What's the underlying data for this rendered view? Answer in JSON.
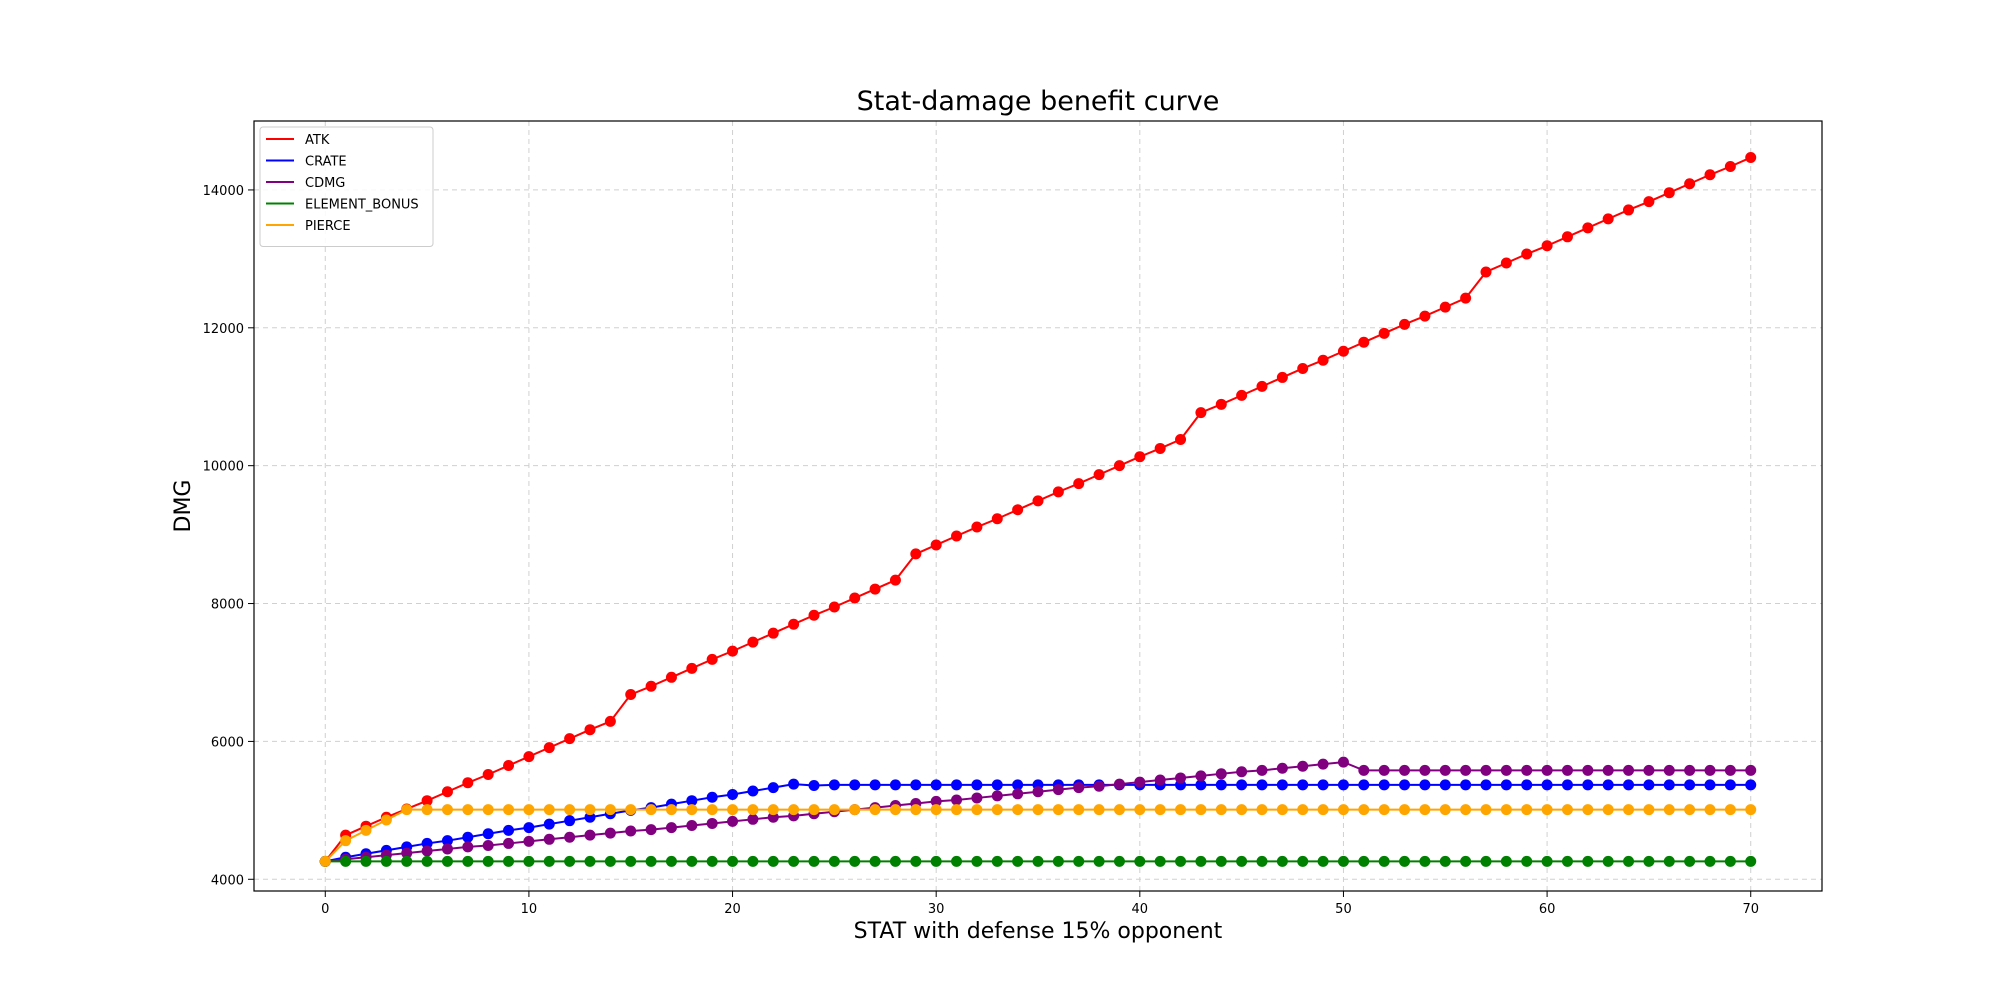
{
  "chart_data": {
    "type": "line",
    "title": "Stat-damage benefit curve",
    "xlabel": "STAT with defense 15% opponent",
    "ylabel": "DMG",
    "xlim": [
      -3.5,
      73.5
    ],
    "ylim": [
      3830,
      15000
    ],
    "x_ticks": [
      0,
      10,
      20,
      30,
      40,
      50,
      60,
      70
    ],
    "y_ticks": [
      4000,
      6000,
      8000,
      10000,
      12000,
      14000
    ],
    "grid": true,
    "legend_position": "top-left",
    "markers": "circle",
    "x": [
      0,
      1,
      2,
      3,
      4,
      5,
      6,
      7,
      8,
      9,
      10,
      11,
      12,
      13,
      14,
      15,
      16,
      17,
      18,
      19,
      20,
      21,
      22,
      23,
      24,
      25,
      26,
      27,
      28,
      29,
      30,
      31,
      32,
      33,
      34,
      35,
      36,
      37,
      38,
      39,
      40,
      41,
      42,
      43,
      44,
      45,
      46,
      47,
      48,
      49,
      50,
      51,
      52,
      53,
      54,
      55,
      56,
      57,
      58,
      59,
      60,
      61,
      62,
      63,
      64,
      65,
      66,
      67,
      68,
      69,
      70
    ],
    "series": [
      {
        "name": "ATK",
        "color": "#ff0000",
        "values": [
          4260,
          4640,
          4770,
          4900,
          5020,
          5140,
          5270,
          5400,
          5520,
          5650,
          5780,
          5910,
          6040,
          6170,
          6290,
          6680,
          6800,
          6930,
          7060,
          7190,
          7310,
          7440,
          7570,
          7700,
          7830,
          7950,
          8080,
          8210,
          8340,
          8720,
          8850,
          8980,
          9110,
          9230,
          9360,
          9490,
          9620,
          9740,
          9870,
          10000,
          10130,
          10250,
          10380,
          10770,
          10890,
          11020,
          11150,
          11280,
          11410,
          11530,
          11660,
          11790,
          11920,
          12050,
          12170,
          12300,
          12430,
          12810,
          12940,
          13070,
          13190,
          13320,
          13450,
          13580,
          13710,
          13830,
          13960,
          14090,
          14220,
          14340,
          14470
        ]
      },
      {
        "name": "CRATE",
        "color": "#0000ff",
        "values": [
          4260,
          4320,
          4370,
          4420,
          4470,
          4520,
          4560,
          4610,
          4660,
          4710,
          4750,
          4800,
          4850,
          4900,
          4950,
          5000,
          5040,
          5090,
          5140,
          5190,
          5230,
          5280,
          5330,
          5380,
          5360,
          5370,
          5370,
          5370,
          5370,
          5370,
          5370,
          5370,
          5370,
          5370,
          5370,
          5370,
          5370,
          5370,
          5370,
          5370,
          5370,
          5370,
          5370,
          5370,
          5370,
          5370,
          5370,
          5370,
          5370,
          5370,
          5370,
          5370,
          5370,
          5370,
          5370,
          5370,
          5370,
          5370,
          5370,
          5370,
          5370,
          5370,
          5370,
          5370,
          5370,
          5370,
          5370,
          5370,
          5370,
          5370,
          5370
        ]
      },
      {
        "name": "CDMG",
        "color": "#800080",
        "values": [
          4260,
          4290,
          4320,
          4350,
          4380,
          4410,
          4440,
          4470,
          4490,
          4520,
          4550,
          4580,
          4610,
          4640,
          4670,
          4700,
          4720,
          4750,
          4780,
          4810,
          4840,
          4870,
          4900,
          4920,
          4950,
          4980,
          5010,
          5040,
          5070,
          5100,
          5130,
          5150,
          5180,
          5210,
          5240,
          5270,
          5300,
          5330,
          5350,
          5380,
          5410,
          5440,
          5470,
          5500,
          5530,
          5560,
          5580,
          5610,
          5640,
          5670,
          5700,
          5580,
          5580,
          5580,
          5580,
          5580,
          5580,
          5580,
          5580,
          5580,
          5580,
          5580,
          5580,
          5580,
          5580,
          5580,
          5580,
          5580,
          5580,
          5580,
          5580
        ]
      },
      {
        "name": "ELEMENT_BONUS",
        "color": "#008000",
        "values": [
          4260,
          4260,
          4260,
          4260,
          4260,
          4260,
          4260,
          4260,
          4260,
          4260,
          4260,
          4260,
          4260,
          4260,
          4260,
          4260,
          4260,
          4260,
          4260,
          4260,
          4260,
          4260,
          4260,
          4260,
          4260,
          4260,
          4260,
          4260,
          4260,
          4260,
          4260,
          4260,
          4260,
          4260,
          4260,
          4260,
          4260,
          4260,
          4260,
          4260,
          4260,
          4260,
          4260,
          4260,
          4260,
          4260,
          4260,
          4260,
          4260,
          4260,
          4260,
          4260,
          4260,
          4260,
          4260,
          4260,
          4260,
          4260,
          4260,
          4260,
          4260,
          4260,
          4260,
          4260,
          4260,
          4260,
          4260,
          4260,
          4260,
          4260,
          4260
        ]
      },
      {
        "name": "PIERCE",
        "color": "#ffa500",
        "values": [
          4260,
          4560,
          4710,
          4860,
          5010,
          5010,
          5010,
          5010,
          5010,
          5010,
          5010,
          5010,
          5010,
          5010,
          5010,
          5010,
          5010,
          5010,
          5010,
          5010,
          5010,
          5010,
          5010,
          5010,
          5010,
          5010,
          5010,
          5010,
          5010,
          5010,
          5010,
          5010,
          5010,
          5010,
          5010,
          5010,
          5010,
          5010,
          5010,
          5010,
          5010,
          5010,
          5010,
          5010,
          5010,
          5010,
          5010,
          5010,
          5010,
          5010,
          5010,
          5010,
          5010,
          5010,
          5010,
          5010,
          5010,
          5010,
          5010,
          5010,
          5010,
          5010,
          5010,
          5010,
          5010,
          5010,
          5010,
          5010,
          5010,
          5010,
          5010
        ]
      }
    ]
  }
}
